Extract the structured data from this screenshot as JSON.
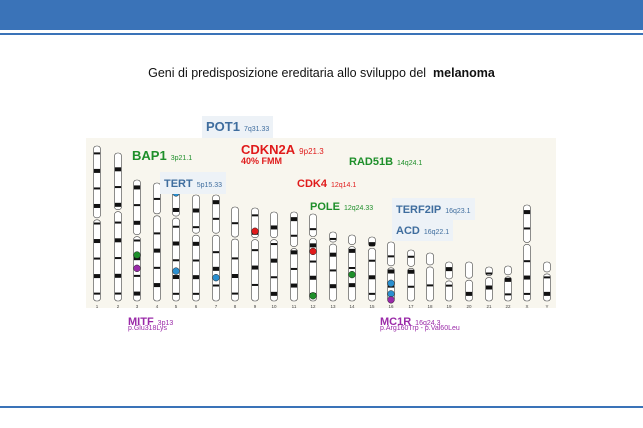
{
  "title": {
    "text": "Geni di predisposizione ereditaria allo sviluppo del",
    "bold": "melanoma"
  },
  "colors": {
    "bar": "#3a73b8",
    "green": "#1e8f2a",
    "red": "#e01b1b",
    "blue": "#3f6d9e",
    "purple": "#9a2aa8",
    "teal": "#2a8fcf"
  },
  "genes": [
    {
      "gene": "POT1",
      "loc": "7q31.33"
    },
    {
      "gene": "BAP1",
      "loc": "3p21.1"
    },
    {
      "gene": "CDKN2A",
      "loc": "9p21.3",
      "note": "40% FMM"
    },
    {
      "gene": "RAD51B",
      "loc": "14q24.1"
    },
    {
      "gene": "TERT",
      "loc": "5p15.33"
    },
    {
      "gene": "CDK4",
      "loc": "12q14.1"
    },
    {
      "gene": "POLE",
      "loc": "12q24.33"
    },
    {
      "gene": "TERF2IP",
      "loc": "16q23.1"
    },
    {
      "gene": "ACD",
      "loc": "16q22.1"
    },
    {
      "gene": "MITF",
      "loc": "3p13",
      "variant": "p.Glu318Lys"
    },
    {
      "gene": "MC1R",
      "loc": "16q24.3",
      "variant": "p.Arg160Trp - p.Val60Leu"
    }
  ],
  "chromosome_labels": [
    "1",
    "2",
    "3",
    "4",
    "5",
    "6",
    "7",
    "8",
    "9",
    "10",
    "11",
    "12",
    "13",
    "14",
    "15",
    "16",
    "17",
    "18",
    "19",
    "20",
    "21",
    "22",
    "X",
    "Y"
  ]
}
